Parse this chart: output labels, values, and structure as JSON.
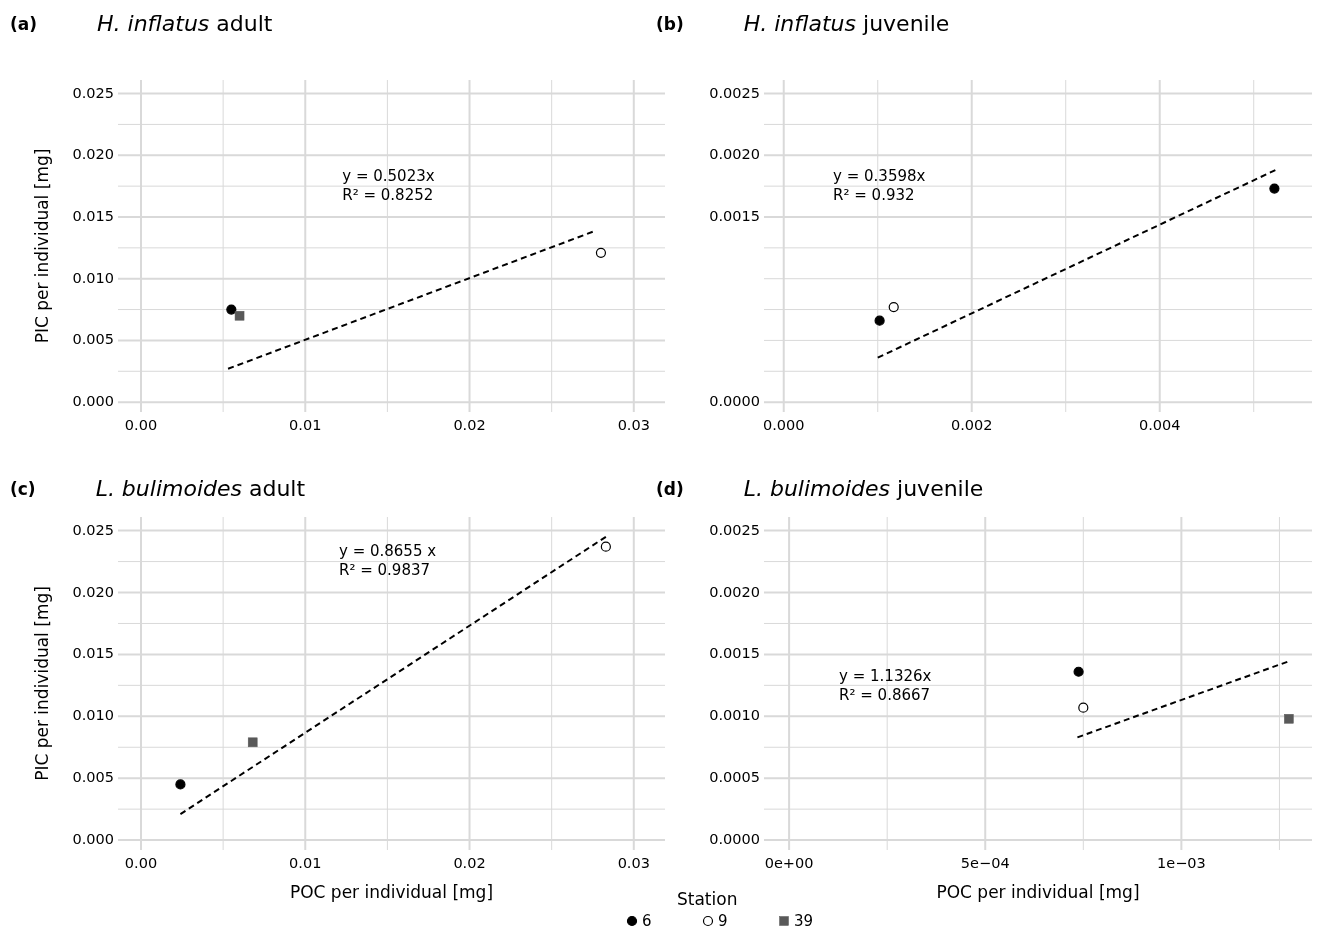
{
  "chart_data": [
    {
      "type": "scatter",
      "title": "(a) H. inflatus adult",
      "ylabel": "PIC per individual [mg]",
      "legend": "bottom",
      "legend_title": "Station",
      "xlim": [
        -0.0014,
        0.0319
      ],
      "ylim": [
        -0.0008,
        0.0261
      ],
      "xticks": [
        {
          "value": 0,
          "label": "0.00"
        },
        {
          "value": 0.005,
          "label": null
        },
        0.01,
        {
          "value": 0.015,
          "label": null
        },
        0.02,
        {
          "value": 0.025,
          "label": null
        },
        0.03
      ],
      "yticks": [
        {
          "value": 0,
          "label": "0.000"
        },
        {
          "value": 0.0025,
          "label": null
        },
        0.005,
        {
          "value": 0.0075,
          "label": null
        },
        {
          "value": 0.01,
          "label": "0.010"
        },
        {
          "value": 0.0125,
          "label": null
        },
        0.015,
        {
          "value": 0.0175,
          "label": null
        },
        {
          "value": 0.02,
          "label": "0.020"
        },
        {
          "value": 0.0225,
          "label": null
        },
        0.025
      ],
      "grid": true,
      "series": [
        {
          "name": "6",
          "color": "#000000",
          "marker": "circle",
          "x": [
            0.0055
          ],
          "values": [
            0.0075
          ]
        },
        {
          "name": "9",
          "color": "#ffffff",
          "marker": "circle",
          "x": [
            0.028
          ],
          "values": [
            0.0121
          ]
        },
        {
          "name": "39",
          "color": "#595959",
          "marker": "square",
          "x": [
            0.006
          ],
          "values": [
            0.007
          ]
        },
        {
          "type": "line",
          "color": "#000000",
          "line_style": "dashed",
          "marker": "none",
          "x": [
            0.0053,
            0.0275
          ],
          "values": [
            0.0027,
            0.0138
          ]
        }
      ],
      "annotations": [
        "y = 0.5023x",
        "R² = 0.8252"
      ]
    },
    {
      "type": "scatter",
      "title": "(b) H. inflatus juvenile",
      "xlim": [
        -0.00021,
        0.00562
      ],
      "ylim": [
        -8e-05,
        0.00261
      ],
      "xticks": [
        {
          "value": 0,
          "label": "0.000"
        },
        {
          "value": 0.001,
          "label": null
        },
        0.002,
        {
          "value": 0.003,
          "label": null
        },
        0.004,
        {
          "value": 0.005,
          "label": null
        }
      ],
      "yticks": [
        {
          "value": 0,
          "label": "0.0000"
        },
        {
          "value": 0.00025,
          "label": null
        },
        {
          "value": 0.0005,
          "label": null
        },
        {
          "value": 0.00075,
          "label": null
        },
        {
          "value": 0.001,
          "label": null
        },
        {
          "value": 0.00125,
          "label": null
        },
        0.0015,
        {
          "value": 0.00175,
          "label": null
        },
        {
          "value": 0.002,
          "label": "0.0020"
        },
        {
          "value": 0.00225,
          "label": null
        },
        0.0025
      ],
      "grid": true,
      "series": [
        {
          "name": "6",
          "color": "#000000",
          "marker": "circle",
          "x": [
            0.00102,
            0.00522
          ],
          "values": [
            0.00066,
            0.00173
          ]
        },
        {
          "name": "9",
          "color": "#ffffff",
          "marker": "circle",
          "x": [
            0.00117
          ],
          "values": [
            0.00077
          ]
        },
        {
          "type": "line",
          "color": "#000000",
          "line_style": "dashed",
          "marker": "none",
          "x": [
            0.001,
            0.00523
          ],
          "values": [
            0.00036,
            0.00188
          ]
        }
      ],
      "annotations": [
        "y = 0.3598x",
        "R² = 0.932"
      ]
    },
    {
      "type": "scatter",
      "title": "(c) L. bulimoides adult",
      "xlabel": "POC per individual [mg]",
      "ylabel": "PIC per individual [mg]",
      "xlim": [
        -0.0014,
        0.0319
      ],
      "ylim": [
        -0.0008,
        0.0261
      ],
      "xticks": [
        {
          "value": 0,
          "label": "0.00"
        },
        {
          "value": 0.005,
          "label": null
        },
        0.01,
        {
          "value": 0.015,
          "label": null
        },
        0.02,
        {
          "value": 0.025,
          "label": null
        },
        0.03
      ],
      "yticks": [
        {
          "value": 0,
          "label": "0.000"
        },
        {
          "value": 0.0025,
          "label": null
        },
        0.005,
        {
          "value": 0.0075,
          "label": null
        },
        {
          "value": 0.01,
          "label": "0.010"
        },
        {
          "value": 0.0125,
          "label": null
        },
        0.015,
        {
          "value": 0.0175,
          "label": null
        },
        {
          "value": 0.02,
          "label": "0.020"
        },
        {
          "value": 0.0225,
          "label": null
        },
        0.025
      ],
      "grid": true,
      "series": [
        {
          "name": "6",
          "color": "#000000",
          "marker": "circle",
          "x": [
            0.0024
          ],
          "values": [
            0.0045
          ]
        },
        {
          "name": "9",
          "color": "#ffffff",
          "marker": "circle",
          "x": [
            0.0283
          ],
          "values": [
            0.0237
          ]
        },
        {
          "name": "39",
          "color": "#595959",
          "marker": "square",
          "x": [
            0.0068
          ],
          "values": [
            0.0079
          ]
        },
        {
          "type": "line",
          "color": "#000000",
          "line_style": "dashed",
          "marker": "none",
          "x": [
            0.0024,
            0.0283
          ],
          "values": [
            0.0021,
            0.0245
          ]
        }
      ],
      "annotations": [
        "y = 0.8655 x",
        "R² = 0.9837"
      ]
    },
    {
      "type": "scatter",
      "title": "(d) L. bulimoides juvenile",
      "xlabel": "POC per individual [mg]",
      "xlim": [
        -6.4e-05,
        0.001333
      ],
      "ylim": [
        -8e-05,
        0.00261
      ],
      "xticks": [
        {
          "value": 0,
          "label": "0e+00"
        },
        {
          "value": 0.00025,
          "label": null
        },
        {
          "value": 0.0005,
          "label": "5e−04"
        },
        {
          "value": 0.00075,
          "label": null
        },
        {
          "value": 0.001,
          "label": "1e−03"
        },
        {
          "value": 0.00125,
          "label": null
        }
      ],
      "yticks": [
        {
          "value": 0,
          "label": "0.0000"
        },
        {
          "value": 0.00025,
          "label": null
        },
        0.0005,
        {
          "value": 0.00075,
          "label": null
        },
        {
          "value": 0.001,
          "label": "0.0010"
        },
        {
          "value": 0.00125,
          "label": null
        },
        0.0015,
        {
          "value": 0.00175,
          "label": null
        },
        {
          "value": 0.002,
          "label": "0.0020"
        },
        {
          "value": 0.00225,
          "label": null
        },
        0.0025
      ],
      "grid": true,
      "series": [
        {
          "name": "6",
          "color": "#000000",
          "marker": "circle",
          "x": [
            0.000738
          ],
          "values": [
            0.00136
          ]
        },
        {
          "name": "9",
          "color": "#ffffff",
          "marker": "circle",
          "x": [
            0.00075
          ],
          "values": [
            0.00107
          ]
        },
        {
          "name": "39",
          "color": "#595959",
          "marker": "square",
          "x": [
            0.001274
          ],
          "values": [
            0.00098
          ]
        },
        {
          "type": "line",
          "color": "#000000",
          "line_style": "dashed",
          "marker": "none",
          "x": [
            0.000735,
            0.00127
          ],
          "values": [
            0.00083,
            0.00144
          ]
        }
      ],
      "annotations": [
        "y = 1.1326x",
        "R² = 0.8667"
      ]
    }
  ]
}
